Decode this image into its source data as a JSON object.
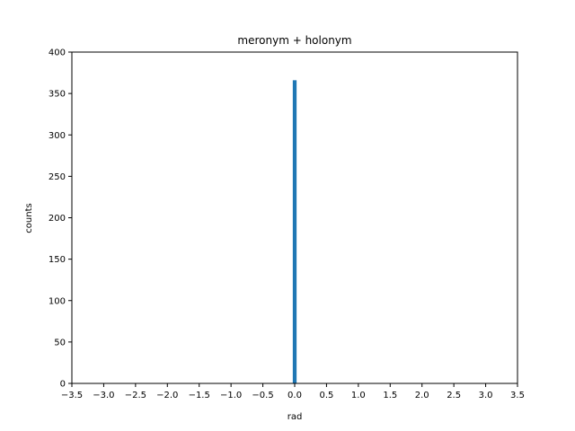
{
  "chart_data": {
    "type": "bar",
    "title": "meronym + holonym",
    "xlabel": "rad",
    "ylabel": "counts",
    "xlim": [
      -3.5,
      3.5
    ],
    "ylim": [
      0,
      400
    ],
    "xticks": [
      "−3.5",
      "−3.0",
      "−2.5",
      "−2.0",
      "−1.5",
      "−1.0",
      "−0.5",
      "0.0",
      "0.5",
      "1.0",
      "1.5",
      "2.0",
      "2.5",
      "3.0",
      "3.5"
    ],
    "xtick_values": [
      -3.5,
      -3.0,
      -2.5,
      -2.0,
      -1.5,
      -1.0,
      -0.5,
      0.0,
      0.5,
      1.0,
      1.5,
      2.0,
      2.5,
      3.0,
      3.5
    ],
    "yticks": [
      "0",
      "50",
      "100",
      "150",
      "200",
      "250",
      "300",
      "350",
      "400"
    ],
    "ytick_values": [
      0,
      50,
      100,
      150,
      200,
      250,
      300,
      350,
      400
    ],
    "bars": [
      {
        "x0": -0.03,
        "x1": 0.03,
        "value": 366
      }
    ],
    "bar_color": "#1f77b4",
    "grid": false
  }
}
